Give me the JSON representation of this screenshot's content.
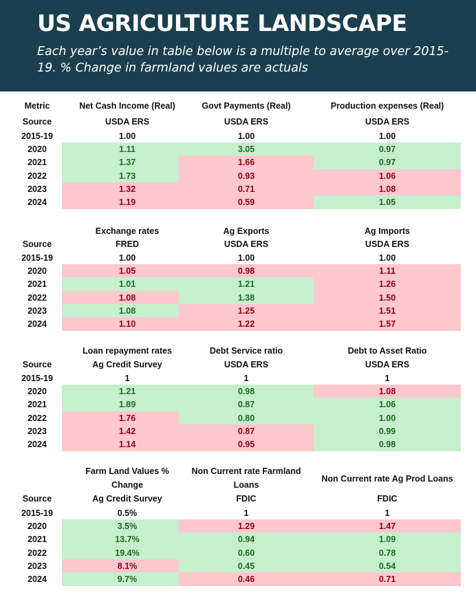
{
  "header": {
    "title": "US AGRICULTURE LANDSCAPE",
    "subtitle": "Each year’s value in table below is a multiple to average over 2015-19. % Change in farmland values are actuals"
  },
  "table1": {
    "metric_label": "Metric",
    "source_label": "Source",
    "columns": [
      {
        "metric": "Net Cash Income (Real)",
        "source": "USDA ERS"
      },
      {
        "metric": "Govt Payments (Real)",
        "source": "USDA ERS"
      },
      {
        "metric": "Production expenses (Real)",
        "source": "USDA ERS"
      }
    ],
    "rows": [
      {
        "year": "2015-19",
        "values": [
          "1.00",
          "1.00",
          "1.00"
        ],
        "status": [
          "n",
          "n",
          "n"
        ]
      },
      {
        "year": "2020",
        "values": [
          "1.11",
          "3.05",
          "0.97"
        ],
        "status": [
          "g",
          "g",
          "g"
        ]
      },
      {
        "year": "2021",
        "values": [
          "1.37",
          "1.66",
          "0.97"
        ],
        "status": [
          "g",
          "r",
          "g"
        ]
      },
      {
        "year": "2022",
        "values": [
          "1.73",
          "0.93",
          "1.06"
        ],
        "status": [
          "g",
          "r",
          "r"
        ]
      },
      {
        "year": "2023",
        "values": [
          "1.32",
          "0.71",
          "1.08"
        ],
        "status": [
          "r",
          "r",
          "r"
        ]
      },
      {
        "year": "2024",
        "values": [
          "1.19",
          "0.59",
          "1.05"
        ],
        "status": [
          "r",
          "r",
          "g"
        ]
      }
    ]
  },
  "table2": {
    "source_label": "Source",
    "columns": [
      {
        "metric": "Exchange rates",
        "source": "FRED"
      },
      {
        "metric": "Ag Exports",
        "source": "USDA ERS"
      },
      {
        "metric": "Ag Imports",
        "source": "USDA ERS"
      }
    ],
    "rows": [
      {
        "year": "2015-19",
        "values": [
          "1.00",
          "1.00",
          "1.00"
        ],
        "status": [
          "n",
          "n",
          "n"
        ]
      },
      {
        "year": "2020",
        "values": [
          "1.05",
          "0.98",
          "1.11"
        ],
        "status": [
          "r",
          "r",
          "r"
        ]
      },
      {
        "year": "2021",
        "values": [
          "1.01",
          "1.21",
          "1.26"
        ],
        "status": [
          "g",
          "g",
          "r"
        ]
      },
      {
        "year": "2022",
        "values": [
          "1.08",
          "1.38",
          "1.50"
        ],
        "status": [
          "r",
          "g",
          "r"
        ]
      },
      {
        "year": "2023",
        "values": [
          "1.08",
          "1.25",
          "1.51"
        ],
        "status": [
          "g",
          "r",
          "r"
        ]
      },
      {
        "year": "2024",
        "values": [
          "1.10",
          "1.22",
          "1.57"
        ],
        "status": [
          "r",
          "r",
          "r"
        ]
      }
    ]
  },
  "table3": {
    "source_label": "Source",
    "columns": [
      {
        "metric": "Loan repayment rates",
        "source": "Ag Credit Survey"
      },
      {
        "metric": "Debt Service ratio",
        "source": "USDA ERS"
      },
      {
        "metric": "Debt to Asset Ratio",
        "source": "USDA ERS"
      }
    ],
    "rows": [
      {
        "year": "2015-19",
        "values": [
          "1",
          "1",
          "1"
        ],
        "status": [
          "n",
          "n",
          "n"
        ]
      },
      {
        "year": "2020",
        "values": [
          "1.21",
          "0.98",
          "1.08"
        ],
        "status": [
          "g",
          "g",
          "r"
        ]
      },
      {
        "year": "2021",
        "values": [
          "1.89",
          "0.87",
          "1.06"
        ],
        "status": [
          "g",
          "g",
          "g"
        ]
      },
      {
        "year": "2022",
        "values": [
          "1.76",
          "0.80",
          "1.00"
        ],
        "status": [
          "r",
          "g",
          "g"
        ]
      },
      {
        "year": "2023",
        "values": [
          "1.42",
          "0.87",
          "0.99"
        ],
        "status": [
          "r",
          "r",
          "g"
        ]
      },
      {
        "year": "2024",
        "values": [
          "1.14",
          "0.95",
          "0.98"
        ],
        "status": [
          "r",
          "r",
          "g"
        ]
      }
    ]
  },
  "table4": {
    "source_label": "Source",
    "columns": [
      {
        "metric_line1": "Farm Land Values %",
        "metric_line2": "Change",
        "source": "Ag Credit Survey"
      },
      {
        "metric_line1": "Non Current rate Farmland",
        "metric_line2": "Loans",
        "source": "FDIC"
      },
      {
        "metric_line1": "Non Current rate Ag Prod Loans",
        "metric_line2": "",
        "source": "FDIC"
      }
    ],
    "rows": [
      {
        "year": "2015-19",
        "values": [
          "0.5%",
          "1",
          "1"
        ],
        "status": [
          "n",
          "n",
          "n"
        ]
      },
      {
        "year": "2020",
        "values": [
          "3.5%",
          "1.29",
          "1.47"
        ],
        "status": [
          "g",
          "r",
          "r"
        ]
      },
      {
        "year": "2021",
        "values": [
          "13.7%",
          "0.94",
          "1.09"
        ],
        "status": [
          "g",
          "g",
          "g"
        ]
      },
      {
        "year": "2022",
        "values": [
          "19.4%",
          "0.60",
          "0.78"
        ],
        "status": [
          "g",
          "g",
          "g"
        ]
      },
      {
        "year": "2023",
        "values": [
          "8.1%",
          "0.45",
          "0.54"
        ],
        "status": [
          "r",
          "g",
          "g"
        ]
      },
      {
        "year": "2024",
        "values": [
          "9.7%",
          "0.46",
          "0.71"
        ],
        "status": [
          "g",
          "r",
          "r"
        ]
      }
    ]
  }
}
